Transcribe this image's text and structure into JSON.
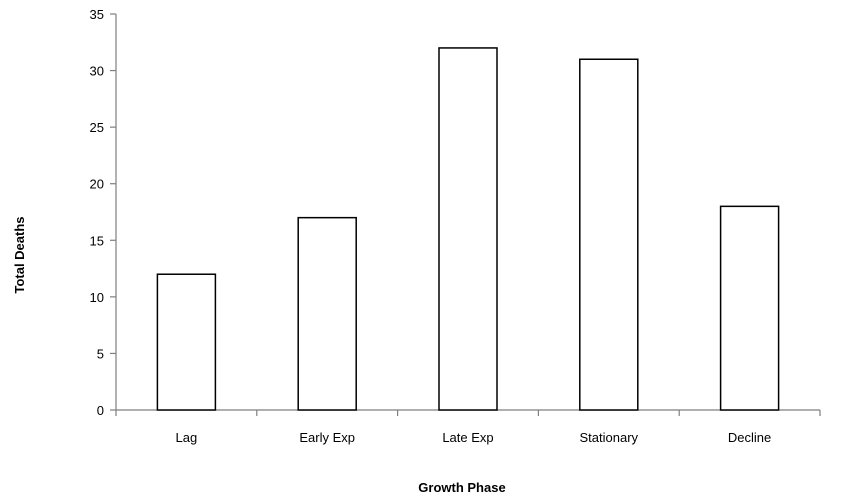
{
  "chart_data": {
    "type": "bar",
    "categories": [
      "Lag",
      "Early Exp",
      "Late Exp",
      "Stationary",
      "Decline"
    ],
    "values": [
      12,
      17,
      32,
      31,
      18
    ],
    "title": "",
    "xlabel": "Growth Phase",
    "ylabel": "Total Deaths",
    "ylim": [
      0,
      35
    ],
    "yticks": [
      0,
      5,
      10,
      15,
      20,
      25,
      30,
      35
    ],
    "grid": false,
    "legend": "none",
    "colors": {
      "bar_fill": "#ffffff",
      "bar_stroke": "#000000",
      "axis": "#7f7f7f"
    }
  }
}
